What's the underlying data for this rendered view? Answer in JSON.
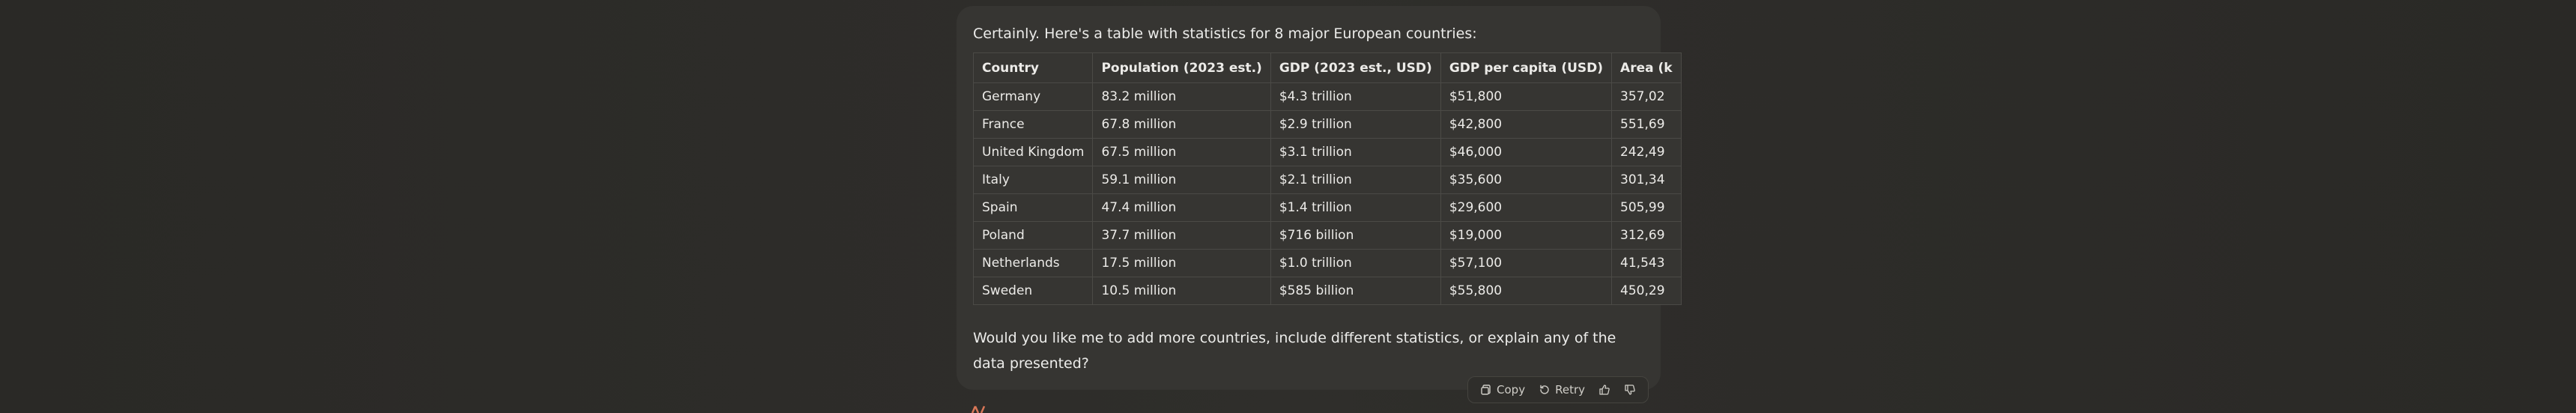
{
  "message": {
    "intro": "Certainly. Here's a table with statistics for 8 major European countries:",
    "outro": "Would you like me to add more countries, include different statistics, or explain any of the data presented?"
  },
  "table": {
    "headers": [
      "Country",
      "Population (2023 est.)",
      "GDP (2023 est., USD)",
      "GDP per capita (USD)",
      "Area (k"
    ],
    "rows": [
      [
        "Germany",
        "83.2 million",
        "$4.3 trillion",
        "$51,800",
        "357,02"
      ],
      [
        "France",
        "67.8 million",
        "$2.9 trillion",
        "$42,800",
        "551,69"
      ],
      [
        "United Kingdom",
        "67.5 million",
        "$3.1 trillion",
        "$46,000",
        "242,49"
      ],
      [
        "Italy",
        "59.1 million",
        "$2.1 trillion",
        "$35,600",
        "301,34"
      ],
      [
        "Spain",
        "47.4 million",
        "$1.4 trillion",
        "$29,600",
        "505,99"
      ],
      [
        "Poland",
        "37.7 million",
        "$716 billion",
        "$19,000",
        "312,69"
      ],
      [
        "Netherlands",
        "17.5 million",
        "$1.0 trillion",
        "$57,100",
        "41,543"
      ],
      [
        "Sweden",
        "10.5 million",
        "$585 billion",
        "$55,800",
        "450,29"
      ]
    ]
  },
  "actions": {
    "copy_label": "Copy",
    "retry_label": "Retry"
  },
  "icons": {
    "copy": "copy-icon",
    "retry": "retry-icon",
    "thumbs_up": "thumbs-up-icon",
    "thumbs_down": "thumbs-down-icon"
  },
  "colors": {
    "background": "#2b2a27",
    "card": "#363532",
    "border": "#4b4a46",
    "text": "#ececea",
    "accent": "#d97757"
  }
}
